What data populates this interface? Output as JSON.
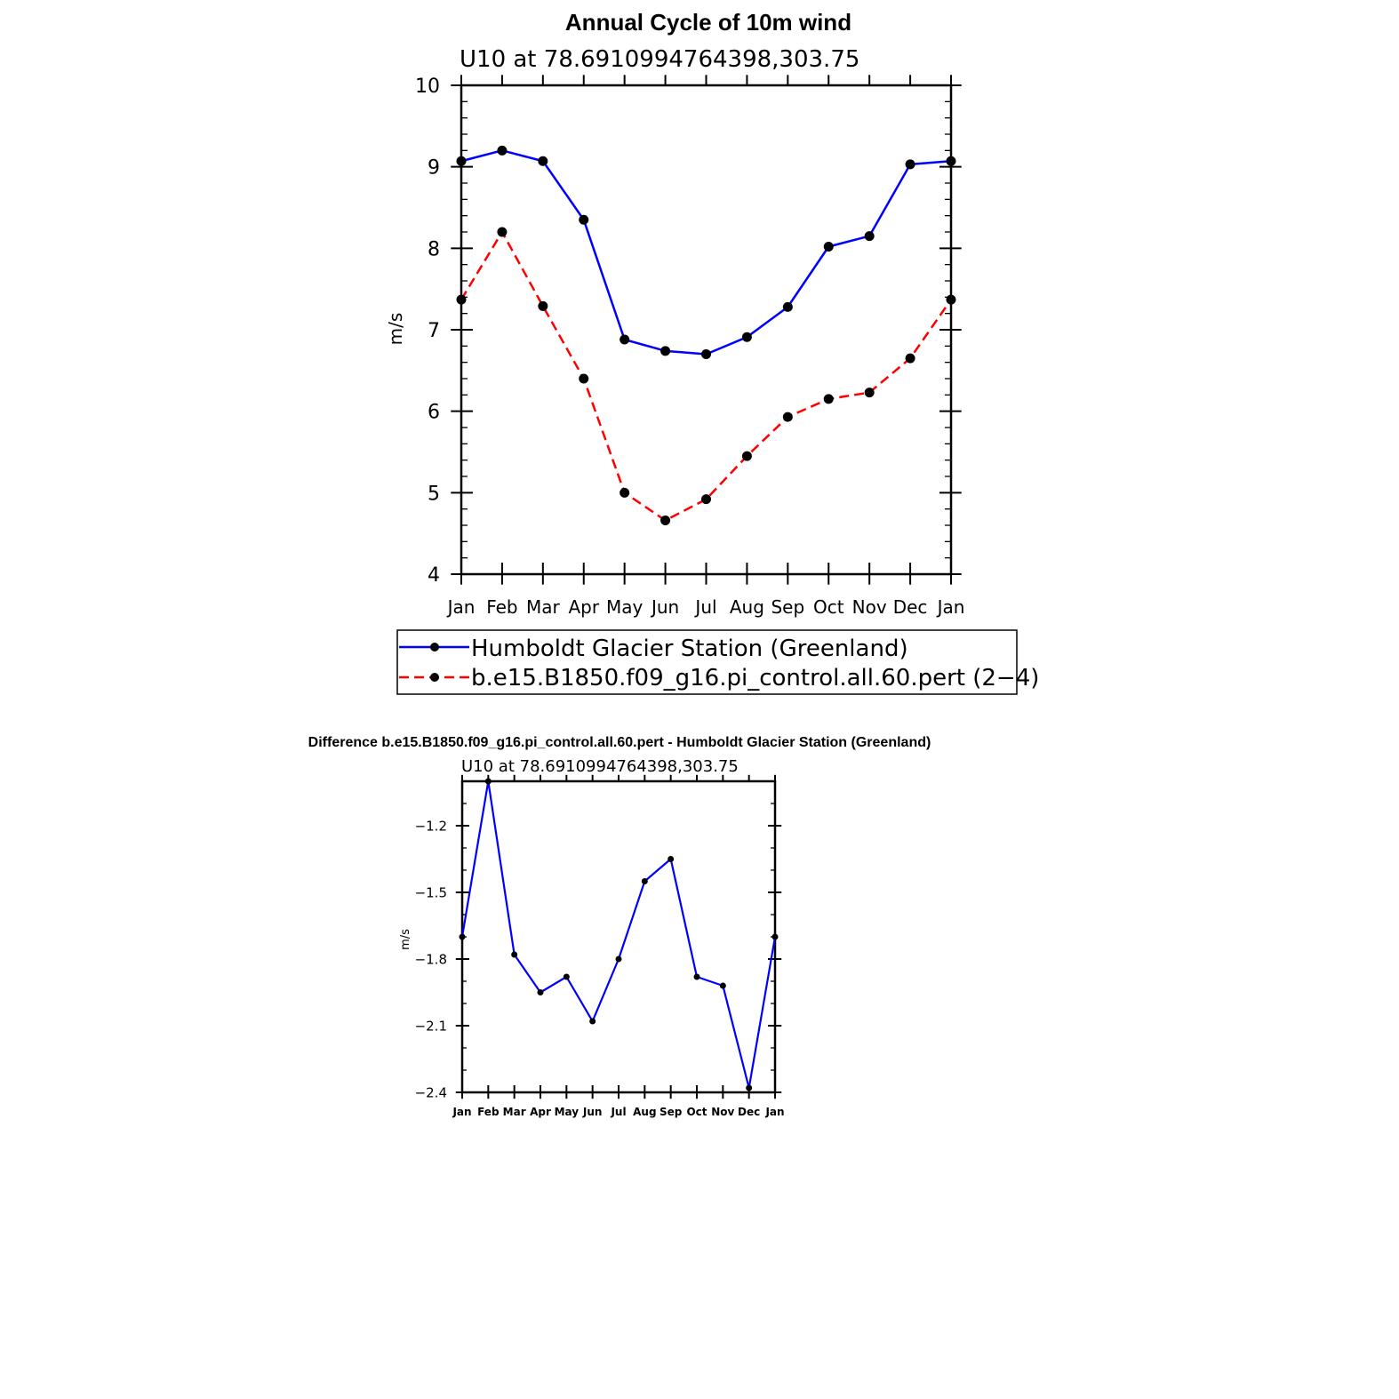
{
  "chart_data": [
    {
      "type": "line",
      "title": "Annual Cycle of 10m wind",
      "subtitle": "U10  at  78.6910994764398,303.75",
      "ylabel": "m/s",
      "xlabel": "",
      "categories": [
        "Jan",
        "Feb",
        "Mar",
        "Apr",
        "May",
        "Jun",
        "Jul",
        "Aug",
        "Sep",
        "Oct",
        "Nov",
        "Dec",
        "Jan"
      ],
      "ylim": [
        4,
        10
      ],
      "yticks": [
        "10",
        "9",
        "8",
        "7",
        "6",
        "5",
        "4"
      ],
      "grid": false,
      "legend_position": "bottom",
      "series": [
        {
          "name": "Humboldt Glacier Station (Greenland)",
          "color": "#0000ff",
          "dash": "solid",
          "values": [
            9.07,
            9.2,
            9.07,
            8.35,
            6.88,
            6.74,
            6.7,
            6.91,
            7.28,
            8.02,
            8.15,
            9.03,
            9.07
          ]
        },
        {
          "name": "b.e15.B1850.f09_g16.pi_control.all.60.pert (2−4)",
          "color": "#ff0000",
          "dash": "dashed",
          "values": [
            7.37,
            8.2,
            7.29,
            6.4,
            5.0,
            4.66,
            4.92,
            5.45,
            5.93,
            6.15,
            6.23,
            6.65,
            7.37
          ]
        }
      ]
    },
    {
      "type": "line",
      "title": "Difference b.e15.B1850.f09_g16.pi_control.all.60.pert - Humboldt Glacier Station (Greenland)",
      "subtitle": "U10  at  78.6910994764398,303.75",
      "ylabel": "m/s",
      "xlabel": "",
      "categories": [
        "Jan",
        "Feb",
        "Mar",
        "Apr",
        "May",
        "Jun",
        "Jul",
        "Aug",
        "Sep",
        "Oct",
        "Nov",
        "Dec",
        "Jan"
      ],
      "ylim": [
        -2.4,
        -1.0
      ],
      "yticks": [
        "-1.2",
        "-1.5",
        "-1.8",
        "-2.1",
        "-2.4"
      ],
      "grid": false,
      "series": [
        {
          "color": "#0000ff",
          "values": [
            -1.7,
            -1.0,
            -1.78,
            -1.95,
            -1.88,
            -2.08,
            -1.8,
            -1.45,
            -1.35,
            -1.88,
            -1.92,
            -2.38,
            -1.7
          ]
        }
      ]
    }
  ]
}
